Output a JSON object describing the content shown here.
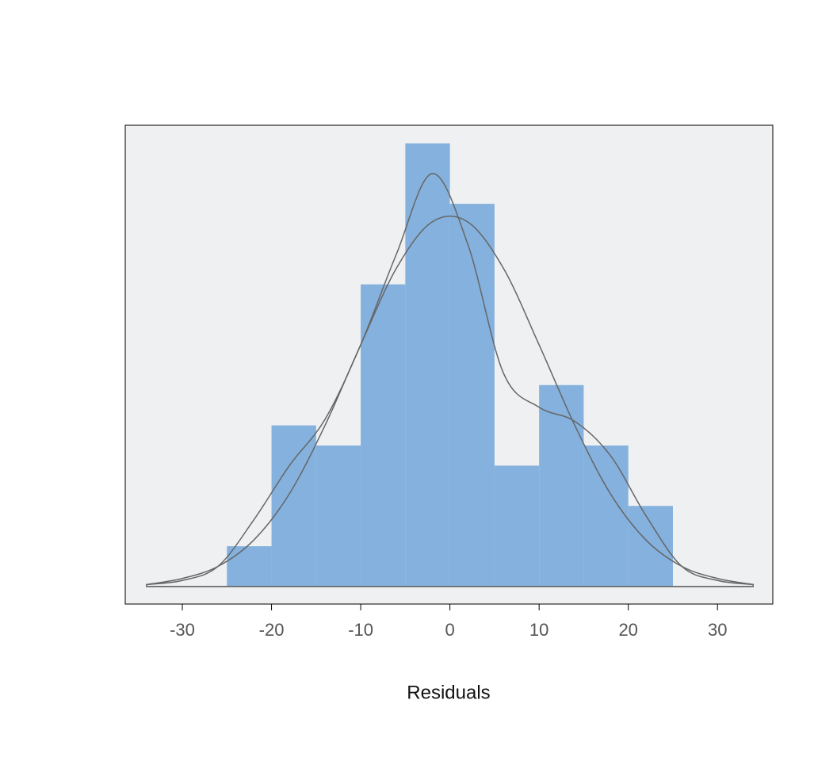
{
  "chart_data": {
    "type": "histogram",
    "x_label": "Residuals",
    "bins": [
      -25,
      -20,
      -15,
      -10,
      -5,
      0,
      5,
      10,
      15,
      20,
      25
    ],
    "counts": [
      2,
      8,
      7,
      15,
      22,
      19,
      6,
      10,
      7,
      4
    ],
    "color": "#84b1dd",
    "background": "#eff0f2",
    "curves": [
      {
        "color": "#666666",
        "x": [
          -34,
          -30,
          -26,
          -22,
          -18,
          -14,
          -10,
          -6,
          -2,
          2,
          6,
          10,
          14,
          18,
          22,
          26,
          30,
          34
        ],
        "values": [
          0.1,
          0.4,
          1.0,
          2.3,
          4.6,
          8.0,
          12.0,
          15.8,
          18.1,
          18.1,
          15.8,
          12.0,
          8.0,
          4.6,
          2.3,
          1.0,
          0.4,
          0.1
        ]
      },
      {
        "color": "#666666",
        "x": [
          -34,
          -30,
          -26,
          -22,
          -18,
          -14,
          -10,
          -6,
          -2,
          2,
          6,
          10,
          14,
          18,
          22,
          26,
          30,
          34
        ],
        "values": [
          0.1,
          0.3,
          1.0,
          3.3,
          6.0,
          8.3,
          12.0,
          16.5,
          20.5,
          17.0,
          10.6,
          8.9,
          8.2,
          6.5,
          3.5,
          1.0,
          0.3,
          0.1
        ]
      }
    ],
    "xlim": [
      -36.4,
      36.2
    ],
    "ylim": [
      -0.87,
      22.9
    ],
    "xticks": [
      -30,
      -20,
      -10,
      0,
      10,
      20,
      30
    ]
  }
}
